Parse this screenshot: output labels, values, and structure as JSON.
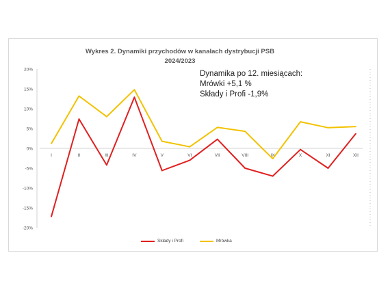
{
  "chart_data": {
    "type": "line",
    "title": "Wykres 2. Dynamiki przychodów w kanałach dystrybucji PSB",
    "subtitle": "2024/2023",
    "categories": [
      "I",
      "II",
      "III",
      "IV",
      "V",
      "VI",
      "VII",
      "VIII",
      "IX",
      "X",
      "XI",
      "XII"
    ],
    "ylim": [
      -20,
      20
    ],
    "yticks": [
      "20%",
      "15%",
      "10%",
      "5%",
      "0%",
      "-5%",
      "-10%",
      "-15%",
      "-20%"
    ],
    "series": [
      {
        "name": "Składy i Profi",
        "color": "#e02020",
        "values": [
          -17.2,
          7.4,
          -4.2,
          12.9,
          -5.6,
          -3.0,
          2.3,
          -5.0,
          -7.0,
          -0.3,
          -5.0,
          3.7
        ]
      },
      {
        "name": "Mrówka",
        "color": "#f2c200",
        "values": [
          1.2,
          13.2,
          8.0,
          14.8,
          1.8,
          0.4,
          5.3,
          4.3,
          -2.6,
          6.7,
          5.2,
          5.5
        ]
      }
    ],
    "annotations": [
      "Dynamika po 12. miesiącach:",
      "Mrówki  +5,1 %",
      "Składy i Profi -1,9%"
    ],
    "legend_position": "bottom",
    "grid": false
  }
}
